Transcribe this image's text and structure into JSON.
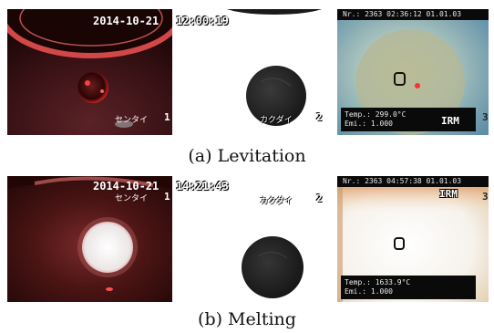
{
  "rows": [
    {
      "caption": "(a) Levitation",
      "panels": [
        {
          "timestamp": "2014-10-21",
          "label": "センタイ",
          "index": "1"
        },
        {
          "timestamp": "12:00:19",
          "label": "カクダイ",
          "index": "2"
        },
        {
          "header": "Nr.: 2363   02:36:12 01.01.03",
          "temp": "Temp.: 299.0°C",
          "emi": "Emi.: 1.000",
          "mode": "IRM",
          "edge": "3"
        }
      ]
    },
    {
      "caption": "(b) Melting",
      "panels": [
        {
          "timestamp": "2014-10-21",
          "label": "センタイ",
          "index": "1"
        },
        {
          "timestamp": "14:21:43",
          "label": "カクダイ",
          "index": "2"
        },
        {
          "header": "Nr.: 2363   04:57:38 01.01.03",
          "temp": "Temp.: 1633.9°C",
          "emi": "Emi.: 1.000",
          "mode": "IRM",
          "edge": "3"
        }
      ]
    }
  ],
  "colors": {
    "sample_glow": "#f2eeee",
    "laser_red": "#ff2020",
    "hud_bg": "#0a0a0a",
    "pyrometer_bg": "#a9c3bd"
  }
}
